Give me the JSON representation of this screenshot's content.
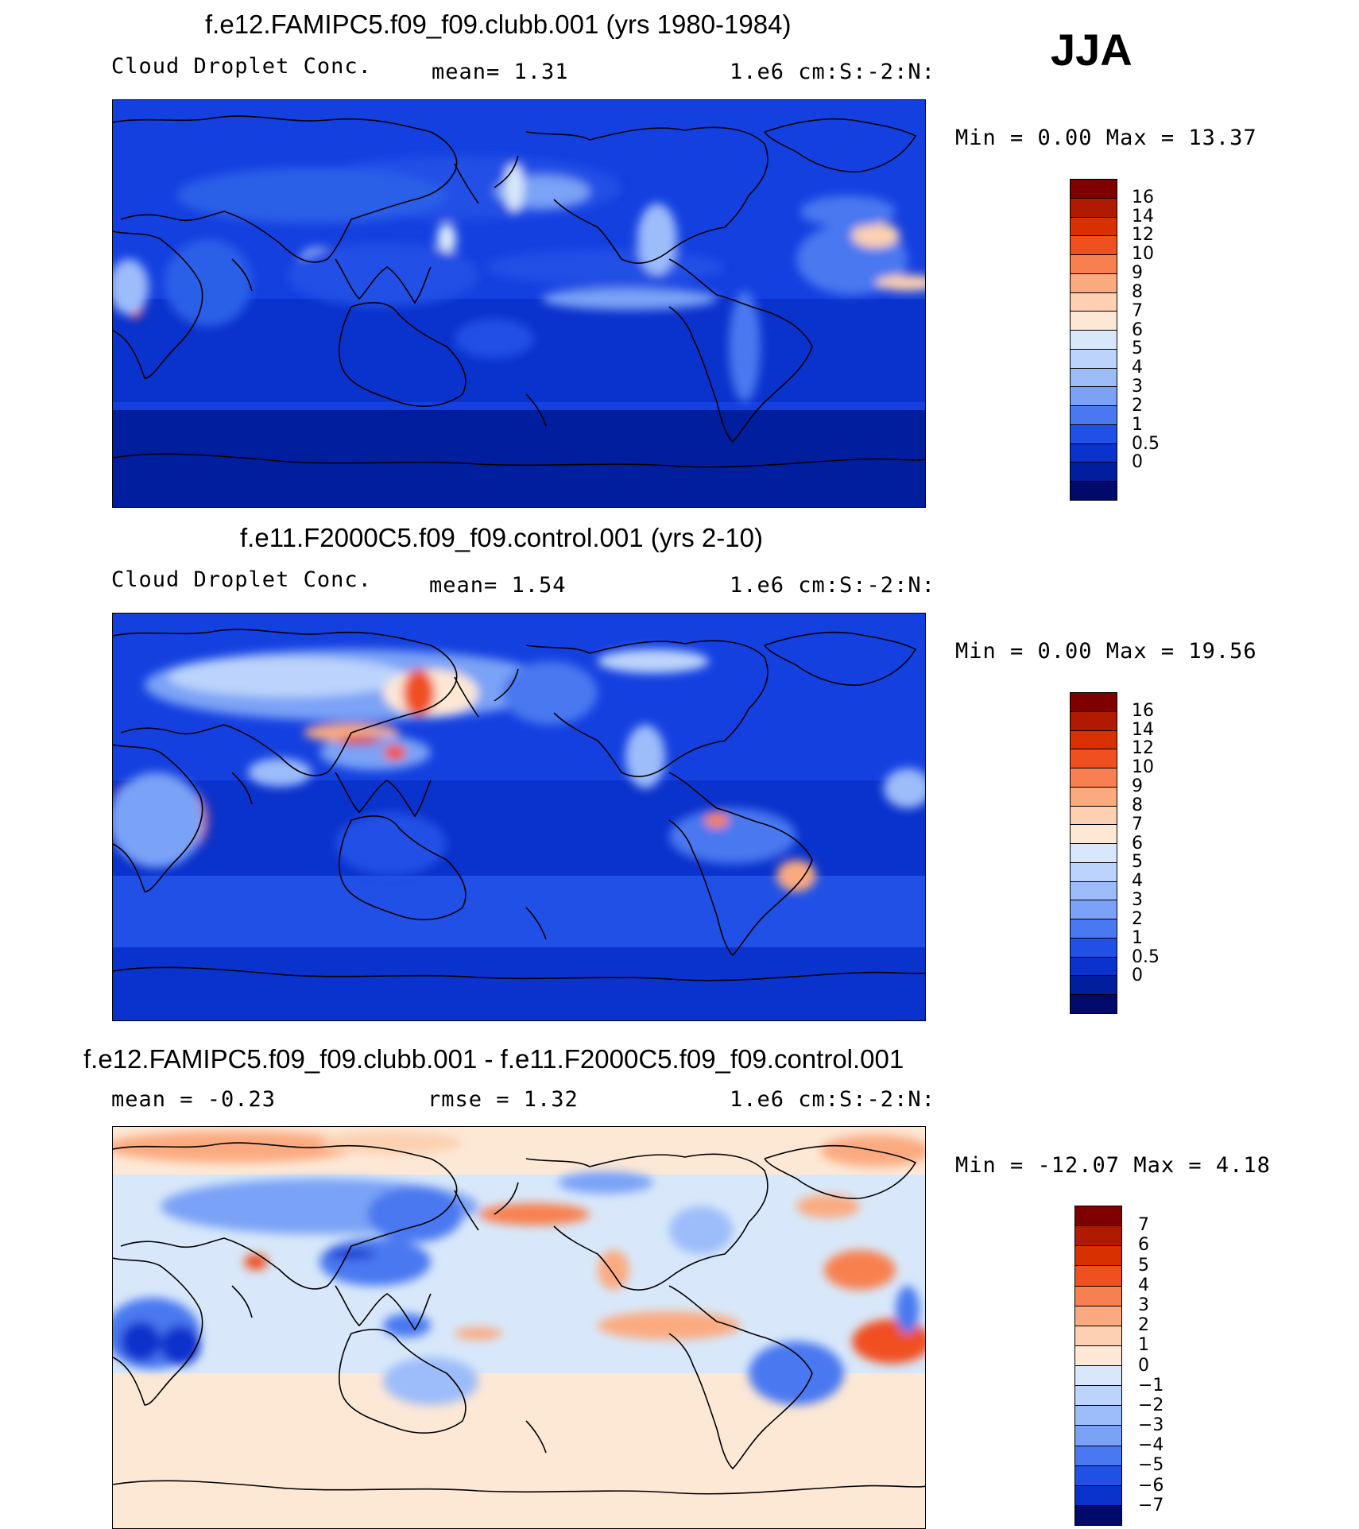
{
  "season": "JJA",
  "panels": [
    {
      "title": "f.e12.FAMIPC5.f09_f09.clubb.001 (yrs 1980-1984)",
      "variable": "Cloud Droplet Conc.",
      "stat_text": "mean=    1.31",
      "units": "1.e6 cm:S:-2:N:",
      "minmax": "Min =    0.00 Max =   13.37",
      "colorbar_labels": [
        "16",
        "14",
        "12",
        "10",
        "9",
        "8",
        "7",
        "6",
        "5",
        "4",
        "3",
        "2",
        "1",
        "0.5",
        "0"
      ],
      "colors": [
        "#7f0000",
        "#b01a00",
        "#d83000",
        "#f05020",
        "#f88050",
        "#fbaa80",
        "#fcd0b0",
        "#fde8d6",
        "#d8e8fa",
        "#bcd4fb",
        "#9cbcfa",
        "#7aa2f6",
        "#4a78f0",
        "#2050e6",
        "#0a32cc",
        "#001e9e",
        "#000a6a"
      ]
    },
    {
      "title": "f.e11.F2000C5.f09_f09.control.001 (yrs 2-10)",
      "variable": "Cloud Droplet Conc.",
      "stat_text": "mean=    1.54",
      "units": "1.e6 cm:S:-2:N:",
      "minmax": "Min =    0.00 Max =   19.56",
      "colorbar_labels": [
        "16",
        "14",
        "12",
        "10",
        "9",
        "8",
        "7",
        "6",
        "5",
        "4",
        "3",
        "2",
        "1",
        "0.5",
        "0"
      ],
      "colors": [
        "#7f0000",
        "#b01a00",
        "#d83000",
        "#f05020",
        "#f88050",
        "#fbaa80",
        "#fcd0b0",
        "#fde8d6",
        "#d8e8fa",
        "#bcd4fb",
        "#9cbcfa",
        "#7aa2f6",
        "#4a78f0",
        "#2050e6",
        "#0a32cc",
        "#001e9e",
        "#000a6a"
      ]
    },
    {
      "title": "f.e12.FAMIPC5.f09_f09.clubb.001 - f.e11.F2000C5.f09_f09.control.001",
      "variable": "mean =   -0.23",
      "stat_text": "rmse =    1.32",
      "units": "1.e6 cm:S:-2:N:",
      "minmax": "Min = -12.07 Max =    4.18",
      "colorbar_labels": [
        "7",
        "6",
        "5",
        "4",
        "3",
        "2",
        "1",
        "0",
        "-1",
        "-2",
        "-3",
        "-4",
        "-5",
        "-6",
        "-7"
      ],
      "colors": [
        "#7f0000",
        "#b01a00",
        "#d83000",
        "#f05020",
        "#f88050",
        "#fbaa80",
        "#fcd0b0",
        "#fde8d6",
        "#d8e8fa",
        "#bcd4fb",
        "#9cbcfa",
        "#7aa2f6",
        "#4a78f0",
        "#2050e6",
        "#0a32cc",
        "#000a6a"
      ]
    }
  ]
}
